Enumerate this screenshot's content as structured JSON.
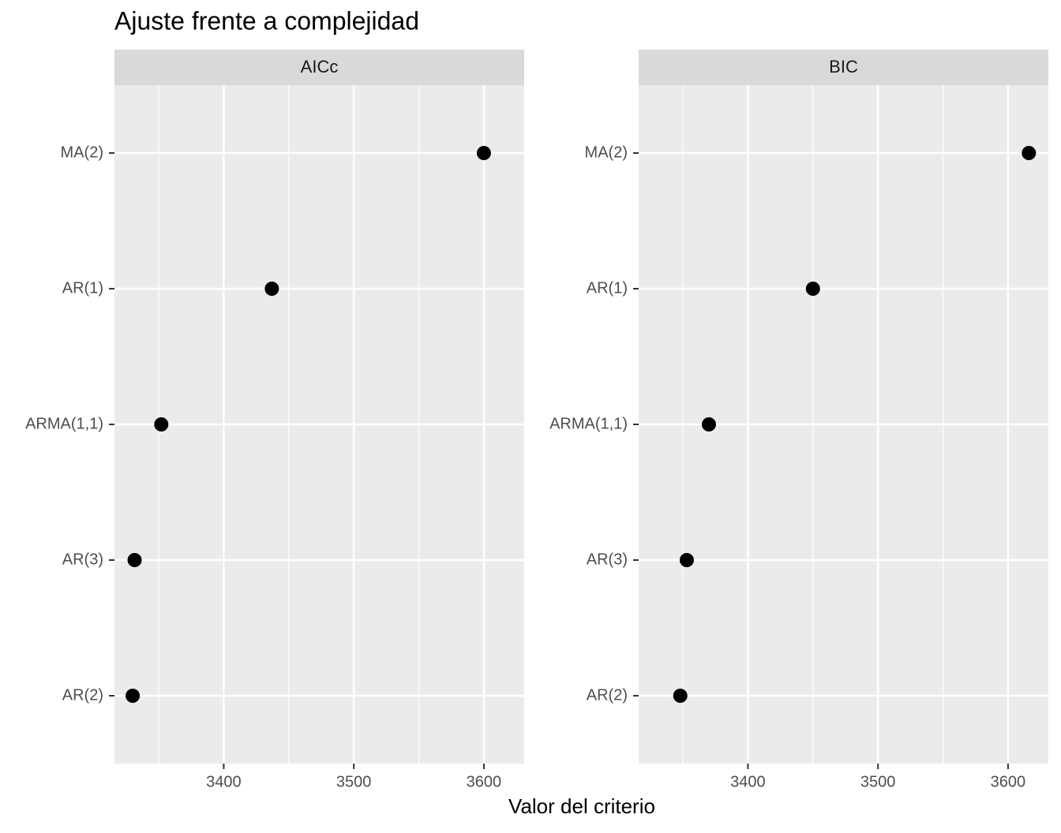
{
  "chart_data": {
    "type": "scatter",
    "title": "Ajuste frente a complejidad",
    "x_label": "Valor del criterio",
    "categories": [
      "MA(2)",
      "AR(1)",
      "ARMA(1,1)",
      "AR(3)",
      "AR(2)"
    ],
    "series": [
      {
        "name": "AICc",
        "color": "#000000",
        "values": [
          3600,
          3437,
          3352,
          3331.5,
          3330
        ]
      },
      {
        "name": "BIC",
        "color": "#000000",
        "values": [
          3616,
          3450,
          3370,
          3353,
          3348
        ]
      }
    ],
    "xlim": [
      3316,
      3631
    ],
    "xticks": [
      3400,
      3500,
      3600
    ],
    "grid": true
  }
}
